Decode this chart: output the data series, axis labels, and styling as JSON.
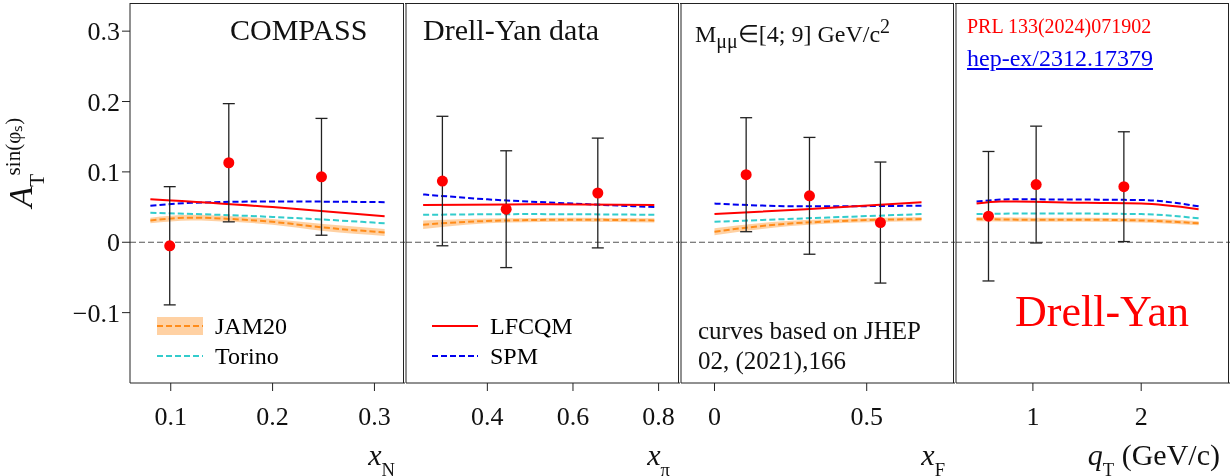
{
  "chart_data": [
    {
      "type": "line",
      "ylabel": "A$_{T}$$^{sin(φₛ)}$",
      "xlabel": "x$_{N}$",
      "annotations": [
        "COMPASS"
      ],
      "xlim": [
        0.06,
        0.33
      ],
      "xticks": [
        0.1,
        0.2,
        0.3
      ],
      "ylim": [
        -0.2,
        0.34
      ],
      "yticks": [
        {
          "value": -0.1,
          "label": "−0.1"
        },
        0,
        0.1,
        0.2,
        0.3
      ],
      "legend": "bottom left",
      "ref_lines": [
        {
          "axis": "y",
          "value": 0,
          "color": "#555555",
          "line_style": "dashed"
        }
      ],
      "series": [
        {
          "type": "scatter",
          "marker": "circle",
          "color": "#ff0000",
          "x": [
            0.099,
            0.157,
            0.248
          ],
          "values": [
            -0.005,
            0.113,
            0.093
          ],
          "errors": [
            0.084,
            0.084,
            0.083
          ]
        },
        {
          "type": "line",
          "name": "JAM20",
          "color": "#ff8c1a",
          "line_style": "dashed",
          "x": [
            0.08,
            0.12,
            0.16,
            0.2,
            0.25,
            0.31
          ],
          "values": [
            0.031,
            0.035,
            0.033,
            0.029,
            0.021,
            0.014
          ],
          "lower": [
            0.027,
            0.031,
            0.029,
            0.025,
            0.016,
            0.009
          ],
          "upper": [
            0.035,
            0.039,
            0.037,
            0.033,
            0.026,
            0.019
          ]
        },
        {
          "type": "line",
          "name": "Torino",
          "color": "#33cccc",
          "line_style": "dashed",
          "x": [
            0.08,
            0.2,
            0.31
          ],
          "values": [
            0.042,
            0.036,
            0.027
          ]
        },
        {
          "type": "line",
          "color": "#ff0000",
          "line_style": "solid",
          "x": [
            0.08,
            0.2,
            0.31
          ],
          "values": [
            0.061,
            0.05,
            0.037
          ]
        },
        {
          "type": "line",
          "color": "#0000ee",
          "line_style": "dashed",
          "x": [
            0.08,
            0.12,
            0.2,
            0.31
          ],
          "values": [
            0.052,
            0.056,
            0.058,
            0.057
          ]
        }
      ]
    },
    {
      "type": "line",
      "xlabel": "x$_{π}$",
      "annotations": [
        "Drell-Yan data"
      ],
      "xlim": [
        0.21,
        0.85
      ],
      "xticks": [
        0.4,
        0.6,
        0.8
      ],
      "ylim": [
        -0.2,
        0.34
      ],
      "yticks": [
        -0.1,
        0,
        0.1,
        0.2,
        0.3
      ],
      "tick_labels": "x",
      "legend": "bottom left",
      "ref_lines": [
        {
          "axis": "y",
          "value": 0,
          "color": "#555555",
          "line_style": "dashed"
        }
      ],
      "series": [
        {
          "type": "scatter",
          "marker": "circle",
          "color": "#ff0000",
          "x": [
            0.295,
            0.444,
            0.658
          ],
          "values": [
            0.087,
            0.047,
            0.07
          ],
          "errors": [
            0.092,
            0.083,
            0.078
          ]
        },
        {
          "type": "line",
          "color": "#ff8c1a",
          "line_style": "dashed",
          "x": [
            0.25,
            0.35,
            0.45,
            0.6,
            0.79
          ],
          "values": [
            0.025,
            0.029,
            0.031,
            0.032,
            0.031
          ],
          "lower": [
            0.019,
            0.025,
            0.028,
            0.029,
            0.028
          ],
          "upper": [
            0.031,
            0.033,
            0.034,
            0.035,
            0.034
          ]
        },
        {
          "type": "line",
          "color": "#33cccc",
          "line_style": "dashed",
          "x": [
            0.25,
            0.5,
            0.79
          ],
          "values": [
            0.039,
            0.04,
            0.039
          ]
        },
        {
          "type": "line",
          "name": "LFCQM",
          "color": "#ff0000",
          "line_style": "solid",
          "x": [
            0.25,
            0.5,
            0.79
          ],
          "values": [
            0.053,
            0.054,
            0.053
          ]
        },
        {
          "type": "line",
          "name": "SPM",
          "color": "#0000ee",
          "line_style": "dashed",
          "x": [
            0.25,
            0.4,
            0.6,
            0.79
          ],
          "values": [
            0.068,
            0.061,
            0.055,
            0.05
          ]
        }
      ]
    },
    {
      "type": "line",
      "xlabel": "x$_{F}$",
      "annotations": [
        "M$_{μμ}$∈[4; 9] GeV/c$^{2}$",
        "curves based on JHEP 02, (2021),166"
      ],
      "xlim": [
        -0.11,
        0.79
      ],
      "xticks": [
        0,
        0.5
      ],
      "ylim": [
        -0.2,
        0.34
      ],
      "yticks": [
        -0.1,
        0,
        0.1,
        0.2,
        0.3
      ],
      "tick_labels": "x",
      "ref_lines": [
        {
          "axis": "y",
          "value": 0,
          "color": "#555555",
          "line_style": "dashed"
        }
      ],
      "series": [
        {
          "type": "scatter",
          "marker": "circle",
          "color": "#ff0000",
          "x": [
            0.104,
            0.312,
            0.545
          ],
          "values": [
            0.096,
            0.066,
            0.028
          ],
          "errors": [
            0.081,
            0.083,
            0.086
          ]
        },
        {
          "type": "line",
          "color": "#ff8c1a",
          "line_style": "dashed",
          "x": [
            0,
            0.2,
            0.4,
            0.68
          ],
          "values": [
            0.015,
            0.025,
            0.03,
            0.033
          ],
          "lower": [
            0.01,
            0.021,
            0.027,
            0.03
          ],
          "upper": [
            0.02,
            0.029,
            0.033,
            0.036
          ]
        },
        {
          "type": "line",
          "color": "#33cccc",
          "line_style": "dashed",
          "x": [
            0,
            0.3,
            0.68
          ],
          "values": [
            0.029,
            0.034,
            0.04
          ]
        },
        {
          "type": "line",
          "color": "#ff0000",
          "line_style": "solid",
          "x": [
            0,
            0.3,
            0.68
          ],
          "values": [
            0.04,
            0.047,
            0.057
          ]
        },
        {
          "type": "line",
          "color": "#0000ee",
          "line_style": "dashed",
          "x": [
            0,
            0.3,
            0.68
          ],
          "values": [
            0.055,
            0.051,
            0.052
          ]
        }
      ]
    },
    {
      "type": "line",
      "xlabel": "q$_{T}$  (GeV/c)",
      "annotations": [
        "PRL 133(2024)071902",
        "hep-ex/2312.17379",
        "Drell-Yan"
      ],
      "xlim": [
        0.29,
        2.82
      ],
      "xticks": [
        1,
        2
      ],
      "ylim": [
        -0.2,
        0.34
      ],
      "yticks": [
        -0.1,
        0,
        0.1,
        0.2,
        0.3
      ],
      "tick_labels": "x",
      "ref_lines": [
        {
          "axis": "y",
          "value": 0,
          "color": "#555555",
          "line_style": "dashed"
        }
      ],
      "series": [
        {
          "type": "scatter",
          "marker": "circle",
          "color": "#ff0000",
          "x": [
            0.59,
            1.03,
            1.84
          ],
          "values": [
            0.037,
            0.082,
            0.079
          ],
          "errors": [
            0.092,
            0.083,
            0.078
          ]
        },
        {
          "type": "line",
          "color": "#ff8c1a",
          "line_style": "dashed",
          "x": [
            0.48,
            1,
            1.5,
            2,
            2.53
          ],
          "values": [
            0.033,
            0.032,
            0.032,
            0.031,
            0.027
          ],
          "lower": [
            0.03,
            0.029,
            0.029,
            0.028,
            0.024
          ],
          "upper": [
            0.036,
            0.035,
            0.035,
            0.034,
            0.03
          ]
        },
        {
          "type": "line",
          "color": "#33cccc",
          "line_style": "dashed",
          "x": [
            0.48,
            1,
            2,
            2.53
          ],
          "values": [
            0.04,
            0.041,
            0.04,
            0.034
          ]
        },
        {
          "type": "line",
          "color": "#ff0000",
          "line_style": "solid",
          "x": [
            0.48,
            0.7,
            1.5,
            2,
            2.53
          ],
          "values": [
            0.055,
            0.058,
            0.056,
            0.055,
            0.047
          ]
        },
        {
          "type": "line",
          "color": "#0000ee",
          "line_style": "dashed",
          "x": [
            0.48,
            0.8,
            2,
            2.53
          ],
          "values": [
            0.058,
            0.061,
            0.06,
            0.051
          ]
        }
      ]
    }
  ]
}
